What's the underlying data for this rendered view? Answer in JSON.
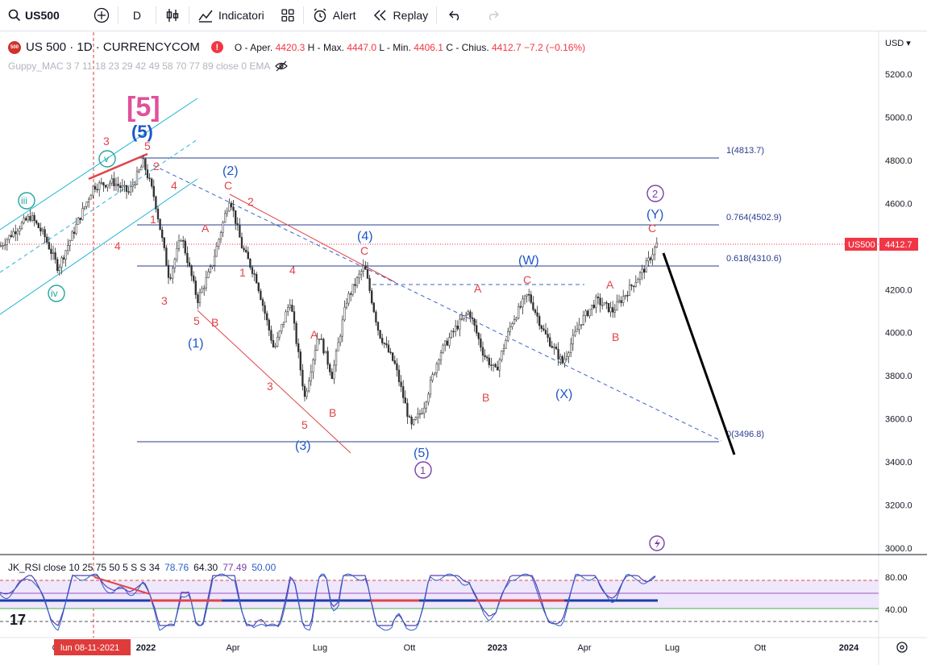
{
  "toolbar": {
    "symbol": "US500",
    "interval": "D",
    "indicators_label": "Indicatori",
    "alert_label": "Alert",
    "replay_label": "Replay"
  },
  "legend": {
    "logo_text": "500",
    "title": "US 500 · 1D · CURRENCYCOM",
    "open_label": "O - Aper.",
    "open": "4420.3",
    "high_label": "H - Max.",
    "high": "4447.0",
    "low_label": "L - Min.",
    "low": "4406.1",
    "close_label": "C - Chius.",
    "close": "4412.7",
    "change": "−7.2 (−0.16%)"
  },
  "indicator_label": "Guppy_MAC 3 7 11 18 23 29 42 49 58 70 77 89 close 0 EMA",
  "currency": "USD",
  "price_axis": [
    "5200.0",
    "5000.0",
    "4800.0",
    "4600.0",
    "4400.0",
    "4200.0",
    "4000.0",
    "3800.0",
    "3600.0",
    "3400.0",
    "3200.0",
    "3000.0"
  ],
  "rsi_axis": [
    "80.00",
    "40.00"
  ],
  "time_axis": [
    "Ott",
    "2022",
    "Apr",
    "Lug",
    "Ott",
    "2023",
    "Apr",
    "Lug",
    "Ott",
    "2024"
  ],
  "crosshair_date": "lun 08-11-2021",
  "price_tag": {
    "symbol": "US500",
    "value": "4412.7"
  },
  "fib_labels": [
    "1(4813.7)",
    "0.764(4502.9)",
    "0.618(4310.6)",
    "0(3496.8)"
  ],
  "rsi_legend": {
    "name": "JK_RSI close 10 25 75 50 5 S S 34",
    "v1": "78.76",
    "v2": "64.30",
    "v3": "77.49",
    "v4": "50.00"
  },
  "wave_labels": {
    "big5": "[5]",
    "p5": "(5)",
    "v": "v",
    "iii": "iii",
    "iv": "iv",
    "c1": "1",
    "c2": "2",
    "c5": "5",
    "w1": "(1)",
    "w2": "(2)",
    "w3": "(3)",
    "w4": "(4)",
    "w5": "(5)",
    "W": "(W)",
    "X": "(X)",
    "Y": "(Y)",
    "A": "A",
    "B": "B",
    "C": "C",
    "n1": "1",
    "n2": "2",
    "n3": "3",
    "n4": "4",
    "n5": "5"
  },
  "chart_data": {
    "type": "line",
    "title": "US 500 · 1D · CURRENCYCOM",
    "xlabel": "",
    "ylabel": "",
    "ylim": [
      3000,
      5200
    ],
    "x": [
      "2021-10",
      "2021-11",
      "2021-12",
      "2022-01",
      "2022-02",
      "2022-03",
      "2022-04",
      "2022-05",
      "2022-06",
      "2022-07",
      "2022-08",
      "2022-09",
      "2022-10",
      "2022-11",
      "2022-12",
      "2023-01",
      "2023-02",
      "2023-03",
      "2023-04",
      "2023-05",
      "2023-06",
      "2023-07"
    ],
    "series": [
      {
        "values": [
          4400,
          4650,
          4700,
          4800,
          4400,
          4250,
          4600,
          4100,
          3680,
          3900,
          4300,
          3850,
          3500,
          4050,
          3950,
          3850,
          4150,
          3900,
          4150,
          4100,
          4300,
          4412.7
        ]
      }
    ],
    "fib_levels": [
      4813.7,
      4502.9,
      4310.6,
      3496.8
    ],
    "rsi_ylim": [
      20,
      90
    ]
  }
}
